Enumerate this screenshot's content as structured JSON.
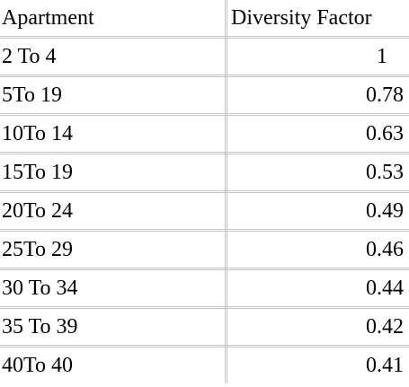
{
  "table": {
    "header": [
      "Apartment",
      "Diversity Factor"
    ],
    "rows": [
      [
        "2 To 4",
        "1"
      ],
      [
        "5To 19",
        "0.78"
      ],
      [
        "10To 14",
        "0.63"
      ],
      [
        "15To 19",
        "0.53"
      ],
      [
        "20To 24",
        "0.49"
      ],
      [
        "25To 29",
        "0.46"
      ],
      [
        "30 To 34",
        "0.44"
      ],
      [
        "35 To 39",
        "0.42"
      ],
      [
        "40To 40",
        "0.41"
      ]
    ]
  }
}
